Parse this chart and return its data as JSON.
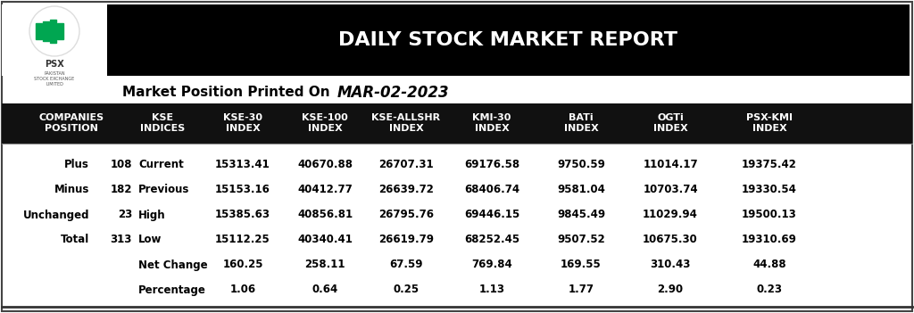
{
  "title": "DAILY STOCK MARKET REPORT",
  "subtitle_label": "Market Position Printed On",
  "subtitle_date": "MAR-02-2023",
  "header_bg": "#000000",
  "header_fg": "#ffffff",
  "table_header_bg": "#111111",
  "table_header_fg": "#ffffff",
  "body_bg": "#ffffff",
  "body_fg": "#000000",
  "col_headers": [
    "COMPANIES\nPOSITION",
    "KSE\nINDICES",
    "KSE-30\nINDEX",
    "KSE-100\nINDEX",
    "KSE-ALLSHR\nINDEX",
    "KMI-30\nINDEX",
    "BATi\nINDEX",
    "OGTi\nINDEX",
    "PSX-KMI\nINDEX"
  ],
  "rows": [
    [
      "Plus",
      "108",
      "Current",
      "15313.41",
      "40670.88",
      "26707.31",
      "69176.58",
      "9750.59",
      "11014.17",
      "19375.42"
    ],
    [
      "Minus",
      "182",
      "Previous",
      "15153.16",
      "40412.77",
      "26639.72",
      "68406.74",
      "9581.04",
      "10703.74",
      "19330.54"
    ],
    [
      "Unchanged",
      "23",
      "High",
      "15385.63",
      "40856.81",
      "26795.76",
      "69446.15",
      "9845.49",
      "11029.94",
      "19500.13"
    ],
    [
      "Total",
      "313",
      "Low",
      "15112.25",
      "40340.41",
      "26619.79",
      "68252.45",
      "9507.52",
      "10675.30",
      "19310.69"
    ],
    [
      "",
      "",
      "Net Change",
      "160.25",
      "258.11",
      "67.59",
      "769.84",
      "169.55",
      "310.43",
      "44.88"
    ],
    [
      "",
      "",
      "Percentage",
      "1.06",
      "0.64",
      "0.25",
      "1.13",
      "1.77",
      "2.90",
      "0.23"
    ]
  ],
  "fig_bg": "#ffffff",
  "outer_border_color": "#444444",
  "logo_green": "#00a651",
  "logo_gold": "#c8a951",
  "logo_circle_ec": "#dddddd",
  "subtitle_label_size": 11,
  "subtitle_date_size": 12,
  "header_title_size": 16,
  "col_header_size": 8,
  "data_font_size": 8.5
}
